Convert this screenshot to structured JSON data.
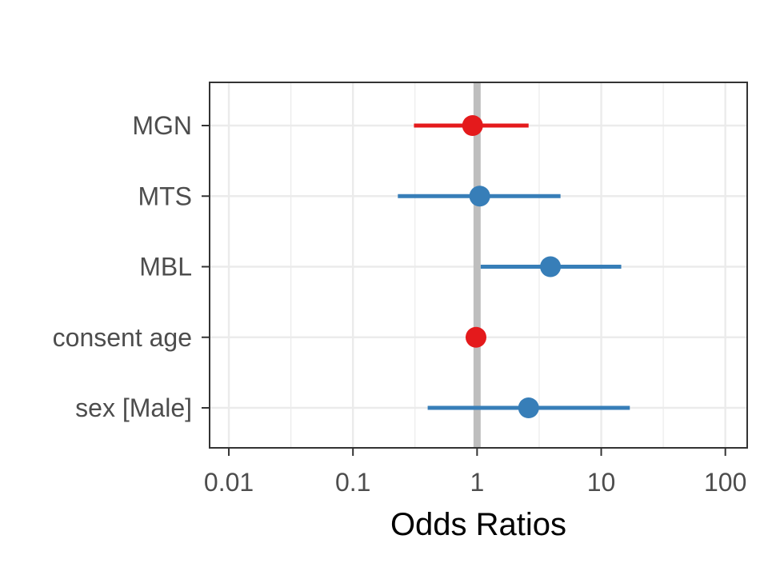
{
  "chart_data": {
    "type": "forest",
    "title": "",
    "xlabel": "Odds Ratios",
    "ylabel": "",
    "x_scale": "log10",
    "xlim": [
      0.007,
      150
    ],
    "x_ticks": [
      0.01,
      0.1,
      1,
      10,
      100
    ],
    "x_tick_labels": [
      "0.01",
      "0.1",
      "1",
      "10",
      "100"
    ],
    "reference_line": 1,
    "grid": true,
    "legend": "none",
    "colors": {
      "positive": "#377eb8",
      "negative": "#e41a1c",
      "reference": "#bebebe"
    },
    "terms": [
      {
        "label": "MGN",
        "estimate": 0.92,
        "ci_low": 0.31,
        "ci_high": 2.6,
        "direction": "negative"
      },
      {
        "label": "MTS",
        "estimate": 1.05,
        "ci_low": 0.23,
        "ci_high": 4.7,
        "direction": "positive"
      },
      {
        "label": "MBL",
        "estimate": 3.9,
        "ci_low": 1.07,
        "ci_high": 14.5,
        "direction": "positive"
      },
      {
        "label": "consent age",
        "estimate": 0.98,
        "ci_low": 0.96,
        "ci_high": 1.0,
        "direction": "negative"
      },
      {
        "label": "sex [Male]",
        "estimate": 2.6,
        "ci_low": 0.4,
        "ci_high": 17,
        "direction": "positive"
      }
    ]
  }
}
